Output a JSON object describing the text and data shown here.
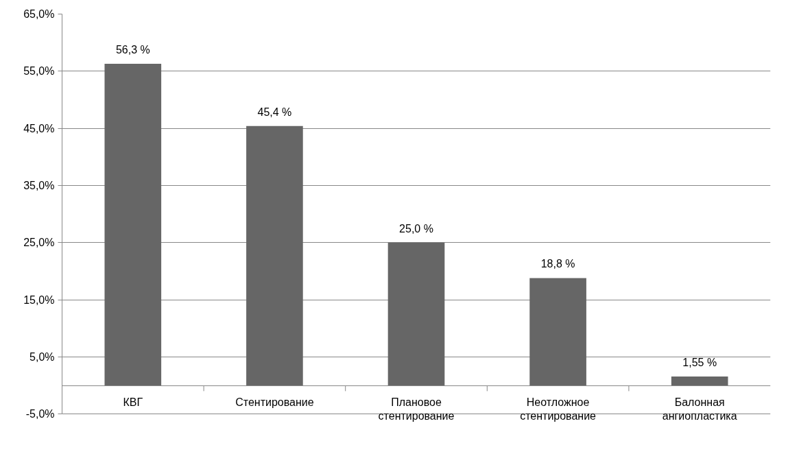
{
  "chart_data": {
    "type": "bar",
    "categories": [
      "КВГ",
      "Стентирование",
      "Плановое стентирование",
      "Неотложное стентирование",
      "Балонная ангиопластика"
    ],
    "values": [
      56.3,
      45.4,
      25.0,
      18.8,
      1.55
    ],
    "value_labels": [
      "56,3 %",
      "45,4 %",
      "25,0 %",
      "18,8 %",
      "1,55 %"
    ],
    "color": "#666666",
    "ylim": [
      -5,
      65
    ],
    "yticks": [
      {
        "value": -5,
        "label": "-5,0%"
      },
      {
        "value": 5,
        "label": "5,0%"
      },
      {
        "value": 15,
        "label": "15,0%"
      },
      {
        "value": 25,
        "label": "25,0%"
      },
      {
        "value": 35,
        "label": "35,0%"
      },
      {
        "value": 45,
        "label": "45,0%"
      },
      {
        "value": 55,
        "label": "55,0%"
      },
      {
        "value": 65,
        "label": "65,0%"
      }
    ],
    "grid": "y"
  }
}
